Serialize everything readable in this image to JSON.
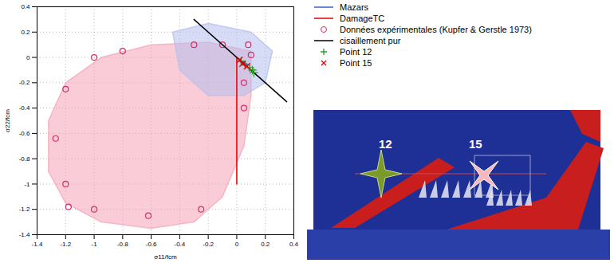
{
  "chart_data": {
    "type": "scatter",
    "xlabel": "σ11/fcm",
    "ylabel": "σ22/fcm",
    "xlim": [
      -1.4,
      0.4
    ],
    "ylim": [
      -1.4,
      0.4
    ],
    "xticks": [
      -1.4,
      -1.2,
      -1,
      -0.8,
      -0.6,
      -0.4,
      -0.2,
      0,
      0.2,
      0.4
    ],
    "yticks": [
      -1.4,
      -1.2,
      -1,
      -0.8,
      -0.6,
      -0.4,
      -0.2,
      0,
      0.2,
      0.4
    ],
    "grid": true,
    "legend": "right",
    "regions": [
      {
        "color": "#f4a3b8",
        "x": [
          -0.2,
          -0.6,
          -0.95,
          -1.2,
          -1.32,
          -1.32,
          -1.2,
          -0.95,
          -0.6,
          -0.3,
          -0.1,
          0.05,
          0.1,
          0.1,
          -0.2
        ],
        "values": [
          0.12,
          0.1,
          0.0,
          -0.2,
          -0.5,
          -0.9,
          -1.15,
          -1.3,
          -1.35,
          -1.3,
          -1.1,
          -0.7,
          -0.3,
          0.05,
          0.12
        ]
      },
      {
        "color": "#b4bdee",
        "x": [
          -0.45,
          -0.2,
          0.1,
          0.25,
          0.2,
          0.05,
          -0.2,
          -0.4,
          -0.45
        ],
        "values": [
          0.2,
          0.27,
          0.2,
          0.05,
          -0.2,
          -0.3,
          -0.3,
          -0.1,
          0.2
        ]
      }
    ],
    "series": [
      {
        "name": "Mazars",
        "color": "#3a5fcd",
        "type": "line",
        "x": [
          0,
          0.04,
          0.08
        ],
        "values": [
          0,
          -0.03,
          -0.06
        ]
      },
      {
        "name": "DamageTC",
        "color": "#e00000",
        "type": "line",
        "x": [
          0,
          0,
          0
        ],
        "values": [
          0,
          -0.5,
          -1
        ]
      },
      {
        "name": "Données expérimentales (Kupfer & Gerstle 1973)",
        "color": "#d0306a",
        "type": "scatter",
        "marker": "circle",
        "x": [
          -0.8,
          -1.0,
          -1.2,
          -1.27,
          -1.2,
          -1.18,
          -1.0,
          -0.62,
          -0.25,
          -0.3,
          -0.1,
          0.08,
          0.1,
          0.05,
          0.05
        ],
        "values": [
          0.05,
          0.0,
          -0.25,
          -0.64,
          -1.0,
          -1.18,
          -1.2,
          -1.25,
          -1.2,
          0.1,
          0.1,
          0.1,
          0.02,
          -0.2,
          -0.4
        ]
      },
      {
        "name": "cisaillement pur",
        "color": "#000000",
        "type": "line",
        "x": [
          -0.3,
          0.35
        ],
        "values": [
          0.3,
          -0.35
        ]
      },
      {
        "name": "Point 12",
        "color": "#2a9a2a",
        "type": "scatter",
        "marker": "plus",
        "x": [
          0.03,
          0.06,
          0.09,
          0.11,
          0.12
        ],
        "values": [
          -0.03,
          -0.06,
          -0.08,
          -0.1,
          -0.12
        ]
      },
      {
        "name": "Point 15",
        "color": "#e00000",
        "type": "scatter",
        "marker": "cross",
        "x": [
          0.02,
          0.04,
          0.07
        ],
        "values": [
          -0.02,
          -0.05,
          -0.07
        ]
      }
    ]
  },
  "damage_map": {
    "labels": [
      "12",
      "15"
    ]
  }
}
